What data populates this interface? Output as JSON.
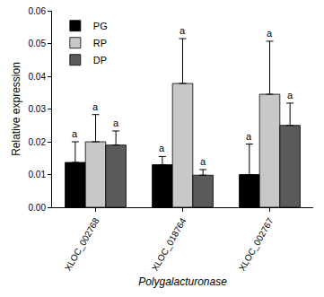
{
  "chart_data": {
    "type": "bar",
    "x_label": "Polygalacturonase",
    "y_label": "Relative expression",
    "categories": [
      "XLOC_002768",
      "XLOC_018764",
      "XLOC_002767"
    ],
    "series": [
      {
        "name": "PG",
        "color": "#000000",
        "values": [
          0.0137,
          0.013,
          0.01
        ],
        "errors": [
          0.0063,
          0.0025,
          0.0093
        ],
        "letters": [
          "a",
          "a",
          "a"
        ]
      },
      {
        "name": "RP",
        "color": "#c8c8c8",
        "values": [
          0.02,
          0.0378,
          0.0345
        ],
        "errors": [
          0.0083,
          0.0137,
          0.0162
        ],
        "letters": [
          "a",
          "a",
          "a"
        ]
      },
      {
        "name": "DP",
        "color": "#5a5a5a",
        "values": [
          0.019,
          0.0098,
          0.025
        ],
        "errors": [
          0.0043,
          0.0017,
          0.0068
        ],
        "letters": [
          "a",
          "a",
          "a"
        ]
      }
    ],
    "ylim": [
      0,
      0.06
    ],
    "yticks": [
      {
        "value": 0,
        "label": "0.00"
      },
      {
        "value": 0.01,
        "label": "0.01"
      },
      {
        "value": 0.02,
        "label": "0.02"
      },
      {
        "value": 0.03,
        "label": "0.03"
      },
      {
        "value": 0.04,
        "label": "0.04"
      },
      {
        "value": 0.05,
        "label": "0.05"
      },
      {
        "value": 0.06,
        "label": "0.06"
      }
    ],
    "legend": "upper left",
    "grid": false
  }
}
